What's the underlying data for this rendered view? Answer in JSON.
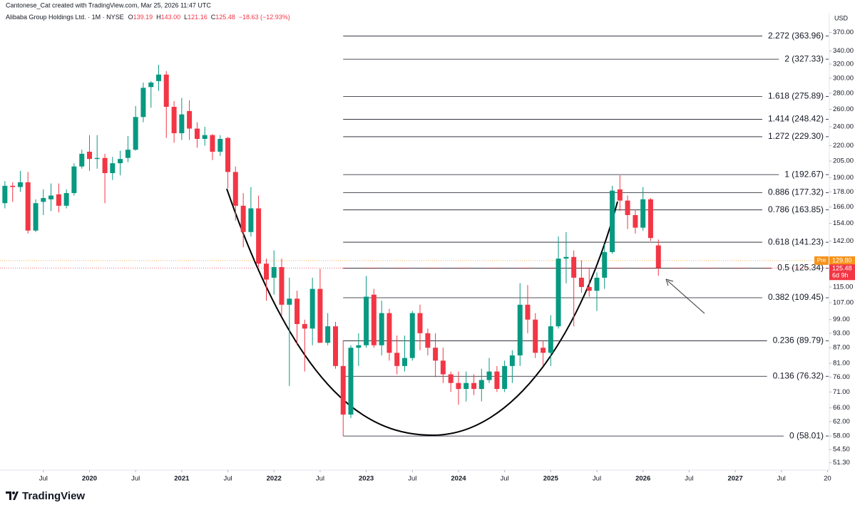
{
  "chart_data": {
    "type": "candlestick",
    "title": "Alibaba Group Holdings Ltd. · 1M · NYSE",
    "subtitle": "Cantonese_Cat created with TradingView.com, Mar 25, 2026 11:47 UTC",
    "legend_values": [
      {
        "key": "O",
        "value": "139.19"
      },
      {
        "key": "H",
        "value": "143.00"
      },
      {
        "key": "L",
        "value": "121.16"
      },
      {
        "key": "C",
        "value": "125.48"
      }
    ],
    "change": "−18.63 (−12.93%)",
    "currency": "USD",
    "branding": "TradingView",
    "log_scale": true,
    "grid": false,
    "up_color": "#089981",
    "down_color": "#f23645",
    "xlim": [
      2019.03,
      2028.02
    ],
    "ylim": [
      49.6,
      405
    ],
    "xticks": [
      {
        "value": 2019.5,
        "label": "Jul"
      },
      2020,
      {
        "value": 2020.5,
        "label": "Jul"
      },
      2021,
      {
        "value": 2021.5,
        "label": "Jul"
      },
      2022,
      {
        "value": 2022.5,
        "label": "Jul"
      },
      2023,
      {
        "value": 2023.5,
        "label": "Jul"
      },
      2024,
      {
        "value": 2024.5,
        "label": "Jul"
      },
      2025,
      {
        "value": 2025.5,
        "label": "Jul"
      },
      2026,
      {
        "value": 2026.5,
        "label": "Jul"
      },
      2027,
      {
        "value": 2027.5,
        "label": "Jul"
      },
      {
        "value": 2028,
        "label": "20"
      }
    ],
    "yticks": [
      {
        "value": 370,
        "label": "370.00"
      },
      {
        "value": 340,
        "label": "340.00"
      },
      {
        "value": 320,
        "label": "320.00"
      },
      {
        "value": 300,
        "label": "300.00"
      },
      {
        "value": 280,
        "label": "280.00"
      },
      {
        "value": 260,
        "label": "260.00"
      },
      {
        "value": 240,
        "label": "240.00"
      },
      {
        "value": 220,
        "label": "220.00"
      },
      {
        "value": 205,
        "label": "205.00"
      },
      {
        "value": 190,
        "label": "190.00"
      },
      {
        "value": 178,
        "label": "178.00"
      },
      {
        "value": 166,
        "label": "166.00"
      },
      {
        "value": 154,
        "label": "154.00"
      },
      {
        "value": 142,
        "label": "142.00"
      },
      {
        "value": 115,
        "label": "115.00"
      },
      {
        "value": 107,
        "label": "107.00"
      },
      {
        "value": 99,
        "label": "99.00"
      },
      {
        "value": 93,
        "label": "93.00"
      },
      {
        "value": 87,
        "label": "87.00"
      },
      {
        "value": 81,
        "label": "81.00"
      },
      {
        "value": 76,
        "label": "76.00"
      },
      {
        "value": 71,
        "label": "71.00"
      },
      {
        "value": 66,
        "label": "66.00"
      },
      {
        "value": 62,
        "label": "62.00"
      },
      {
        "value": 58,
        "label": "58.00"
      },
      {
        "value": 54.5,
        "label": "54.50"
      },
      {
        "value": 51.3,
        "label": "51.30"
      }
    ],
    "fib_levels": [
      {
        "label": "2.272 (363.96)",
        "value": 363.96
      },
      {
        "label": "2 (327.33)",
        "value": 327.33
      },
      {
        "label": "1.618 (275.89)",
        "value": 275.89
      },
      {
        "label": "1.414 (248.42)",
        "value": 248.42
      },
      {
        "label": "1.272 (229.30)",
        "value": 229.3
      },
      {
        "label": "1 (192.67)",
        "value": 192.67
      },
      {
        "label": "0.886 (177.32)",
        "value": 177.32
      },
      {
        "label": "0.786 (163.85)",
        "value": 163.85
      },
      {
        "label": "0.618 (141.23)",
        "value": 141.23
      },
      {
        "label": "0.5 (125.34)",
        "value": 125.34
      },
      {
        "label": "0.382 (109.45)",
        "value": 109.45
      },
      {
        "label": "0.236 (89.79)",
        "value": 89.79
      },
      {
        "label": "0.136 (76.32)",
        "value": 76.32
      },
      {
        "label": "0 (58.01)",
        "value": 58.01
      }
    ],
    "pre_market": {
      "name": "Pre",
      "value": 129.8,
      "label": "129.80",
      "color": "#f7931a"
    },
    "last_price": {
      "value": 125.48,
      "countdown": "6d 9h",
      "color": "#f23645"
    },
    "candles": [
      {
        "x": 2019.083,
        "open": 169,
        "high": 187,
        "low": 165,
        "close": 183
      },
      {
        "x": 2019.167,
        "open": 183,
        "high": 186,
        "low": 170,
        "close": 182
      },
      {
        "x": 2019.25,
        "open": 182,
        "high": 196,
        "low": 178,
        "close": 186
      },
      {
        "x": 2019.333,
        "open": 186,
        "high": 195,
        "low": 147,
        "close": 149
      },
      {
        "x": 2019.417,
        "open": 149,
        "high": 172,
        "low": 148,
        "close": 169
      },
      {
        "x": 2019.5,
        "open": 170,
        "high": 180,
        "low": 160,
        "close": 173
      },
      {
        "x": 2019.583,
        "open": 172,
        "high": 185,
        "low": 163,
        "close": 175
      },
      {
        "x": 2019.667,
        "open": 176,
        "high": 185,
        "low": 162,
        "close": 167
      },
      {
        "x": 2019.75,
        "open": 167,
        "high": 180,
        "low": 165,
        "close": 177
      },
      {
        "x": 2019.833,
        "open": 177,
        "high": 203,
        "low": 175,
        "close": 200
      },
      {
        "x": 2019.917,
        "open": 200,
        "high": 216,
        "low": 198,
        "close": 212
      },
      {
        "x": 2020,
        "open": 214,
        "high": 231,
        "low": 196,
        "close": 207
      },
      {
        "x": 2020.083,
        "open": 207,
        "high": 231,
        "low": 198,
        "close": 208
      },
      {
        "x": 2020.167,
        "open": 208,
        "high": 212,
        "low": 169,
        "close": 194
      },
      {
        "x": 2020.25,
        "open": 194,
        "high": 209,
        "low": 188,
        "close": 203
      },
      {
        "x": 2020.333,
        "open": 203,
        "high": 215,
        "low": 192,
        "close": 207
      },
      {
        "x": 2020.417,
        "open": 208,
        "high": 230,
        "low": 204,
        "close": 216
      },
      {
        "x": 2020.5,
        "open": 216,
        "high": 264,
        "low": 215,
        "close": 251
      },
      {
        "x": 2020.583,
        "open": 251,
        "high": 294,
        "low": 245,
        "close": 287
      },
      {
        "x": 2020.667,
        "open": 288,
        "high": 296,
        "low": 262,
        "close": 294
      },
      {
        "x": 2020.75,
        "open": 296,
        "high": 319,
        "low": 283,
        "close": 305
      },
      {
        "x": 2020.833,
        "open": 305,
        "high": 310,
        "low": 228,
        "close": 263
      },
      {
        "x": 2020.917,
        "open": 263,
        "high": 270,
        "low": 223,
        "close": 233
      },
      {
        "x": 2021,
        "open": 233,
        "high": 274,
        "low": 226,
        "close": 254
      },
      {
        "x": 2021.083,
        "open": 258,
        "high": 271,
        "low": 226,
        "close": 238
      },
      {
        "x": 2021.167,
        "open": 238,
        "high": 245,
        "low": 218,
        "close": 227
      },
      {
        "x": 2021.25,
        "open": 227,
        "high": 240,
        "low": 220,
        "close": 231
      },
      {
        "x": 2021.333,
        "open": 231,
        "high": 232,
        "low": 206,
        "close": 214
      },
      {
        "x": 2021.417,
        "open": 214,
        "high": 231,
        "low": 210,
        "close": 227
      },
      {
        "x": 2021.5,
        "open": 228,
        "high": 229,
        "low": 181,
        "close": 195
      },
      {
        "x": 2021.583,
        "open": 195,
        "high": 200,
        "low": 156,
        "close": 167
      },
      {
        "x": 2021.667,
        "open": 167,
        "high": 177,
        "low": 138,
        "close": 148
      },
      {
        "x": 2021.75,
        "open": 148,
        "high": 182,
        "low": 145,
        "close": 165
      },
      {
        "x": 2021.833,
        "open": 165,
        "high": 175,
        "low": 126,
        "close": 128
      },
      {
        "x": 2021.917,
        "open": 128,
        "high": 131,
        "low": 108,
        "close": 119
      },
      {
        "x": 2022,
        "open": 120,
        "high": 136,
        "low": 111,
        "close": 126
      },
      {
        "x": 2022.083,
        "open": 126,
        "high": 131,
        "low": 101,
        "close": 106
      },
      {
        "x": 2022.167,
        "open": 106,
        "high": 120,
        "low": 73,
        "close": 109
      },
      {
        "x": 2022.25,
        "open": 109,
        "high": 113,
        "low": 88,
        "close": 97
      },
      {
        "x": 2022.333,
        "open": 97,
        "high": 99,
        "low": 78,
        "close": 95
      },
      {
        "x": 2022.417,
        "open": 95,
        "high": 120,
        "low": 88,
        "close": 114
      },
      {
        "x": 2022.5,
        "open": 114,
        "high": 125,
        "low": 89,
        "close": 89
      },
      {
        "x": 2022.583,
        "open": 89,
        "high": 102,
        "low": 88,
        "close": 96
      },
      {
        "x": 2022.667,
        "open": 96,
        "high": 98,
        "low": 79,
        "close": 80
      },
      {
        "x": 2022.75,
        "open": 80,
        "high": 90,
        "low": 58,
        "close": 64
      },
      {
        "x": 2022.833,
        "open": 64,
        "high": 88,
        "low": 63,
        "close": 87
      },
      {
        "x": 2022.917,
        "open": 87,
        "high": 93,
        "low": 80,
        "close": 88
      },
      {
        "x": 2023,
        "open": 88,
        "high": 121,
        "low": 87,
        "close": 110
      },
      {
        "x": 2023.083,
        "open": 111,
        "high": 114,
        "low": 87,
        "close": 88
      },
      {
        "x": 2023.167,
        "open": 88,
        "high": 108,
        "low": 84,
        "close": 102
      },
      {
        "x": 2023.25,
        "open": 102,
        "high": 104,
        "low": 82,
        "close": 85
      },
      {
        "x": 2023.333,
        "open": 85,
        "high": 92,
        "low": 77,
        "close": 80
      },
      {
        "x": 2023.417,
        "open": 80,
        "high": 92,
        "low": 78,
        "close": 83
      },
      {
        "x": 2023.5,
        "open": 83,
        "high": 103,
        "low": 82,
        "close": 102
      },
      {
        "x": 2023.583,
        "open": 102,
        "high": 106,
        "low": 86,
        "close": 93
      },
      {
        "x": 2023.667,
        "open": 93,
        "high": 95,
        "low": 84,
        "close": 87
      },
      {
        "x": 2023.75,
        "open": 87,
        "high": 93,
        "low": 76,
        "close": 82
      },
      {
        "x": 2023.833,
        "open": 82,
        "high": 87,
        "low": 74,
        "close": 77
      },
      {
        "x": 2023.917,
        "open": 77,
        "high": 78,
        "low": 71,
        "close": 74
      },
      {
        "x": 2024,
        "open": 74,
        "high": 78,
        "low": 67,
        "close": 72
      },
      {
        "x": 2024.083,
        "open": 72,
        "high": 78,
        "low": 68,
        "close": 74
      },
      {
        "x": 2024.167,
        "open": 74,
        "high": 77,
        "low": 70,
        "close": 72
      },
      {
        "x": 2024.25,
        "open": 72,
        "high": 79,
        "low": 68,
        "close": 75
      },
      {
        "x": 2024.333,
        "open": 75,
        "high": 83,
        "low": 74,
        "close": 78
      },
      {
        "x": 2024.417,
        "open": 78,
        "high": 80,
        "low": 71,
        "close": 72
      },
      {
        "x": 2024.5,
        "open": 72,
        "high": 82,
        "low": 71,
        "close": 80
      },
      {
        "x": 2024.583,
        "open": 80,
        "high": 86,
        "low": 74,
        "close": 84
      },
      {
        "x": 2024.667,
        "open": 84,
        "high": 117,
        "low": 80,
        "close": 106
      },
      {
        "x": 2024.75,
        "open": 106,
        "high": 116,
        "low": 93,
        "close": 99
      },
      {
        "x": 2024.833,
        "open": 99,
        "high": 102,
        "low": 83,
        "close": 85
      },
      {
        "x": 2024.917,
        "open": 87,
        "high": 90,
        "low": 80,
        "close": 85
      },
      {
        "x": 2025,
        "open": 85,
        "high": 101,
        "low": 80,
        "close": 96
      },
      {
        "x": 2025.083,
        "open": 96,
        "high": 145,
        "low": 95,
        "close": 131
      },
      {
        "x": 2025.167,
        "open": 131,
        "high": 148,
        "low": 117,
        "close": 132
      },
      {
        "x": 2025.25,
        "open": 132,
        "high": 136,
        "low": 96,
        "close": 120
      },
      {
        "x": 2025.333,
        "open": 120,
        "high": 130,
        "low": 112,
        "close": 115
      },
      {
        "x": 2025.417,
        "open": 115,
        "high": 125,
        "low": 110,
        "close": 113
      },
      {
        "x": 2025.5,
        "open": 113,
        "high": 123,
        "low": 103,
        "close": 120
      },
      {
        "x": 2025.583,
        "open": 120,
        "high": 140,
        "low": 114,
        "close": 135
      },
      {
        "x": 2025.667,
        "open": 135,
        "high": 183,
        "low": 134,
        "close": 179
      },
      {
        "x": 2025.75,
        "open": 180,
        "high": 192,
        "low": 163,
        "close": 171
      },
      {
        "x": 2025.833,
        "open": 171,
        "high": 175,
        "low": 150,
        "close": 160
      },
      {
        "x": 2025.917,
        "open": 160,
        "high": 164,
        "low": 147,
        "close": 151
      },
      {
        "x": 2026,
        "open": 151,
        "high": 182,
        "low": 149,
        "close": 172
      },
      {
        "x": 2026.083,
        "open": 172,
        "high": 173,
        "low": 142,
        "close": 144
      },
      {
        "x": 2026.167,
        "open": 139.19,
        "high": 143,
        "low": 121.16,
        "close": 125.48
      }
    ]
  }
}
